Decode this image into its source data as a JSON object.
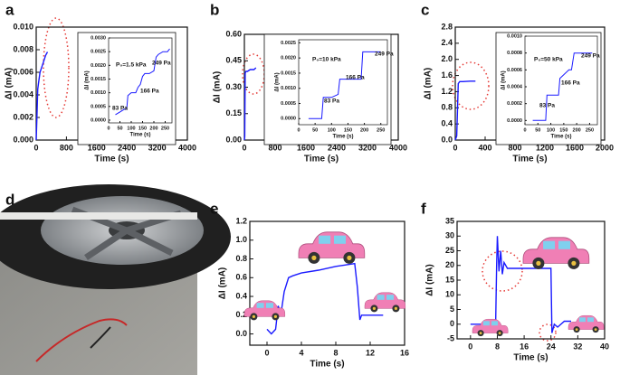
{
  "photo": {
    "label": "d"
  },
  "chart_data": [
    {
      "label": "a",
      "type": "line",
      "xlabel": "Time (s)",
      "ylabel": "ΔI (mA)",
      "xlim": [
        0,
        4000
      ],
      "xticks": [
        0,
        800,
        1600,
        2400,
        3200,
        4000
      ],
      "ylim": [
        0,
        0.01
      ],
      "yticks": [
        {
          "value": 0,
          "label": "0.000"
        },
        {
          "value": 0.002,
          "label": "0.002"
        },
        {
          "value": 0.004,
          "label": "0.004"
        },
        {
          "value": 0.006,
          "label": "0.006"
        },
        {
          "value": 0.008,
          "label": "0.008"
        },
        {
          "value": 0.01,
          "label": "0.010"
        }
      ],
      "series": [
        {
          "color": "#1a1aff",
          "x": [
            0,
            20,
            40,
            60,
            100,
            150,
            200,
            250,
            300
          ],
          "values": [
            0,
            0.002,
            0.0045,
            0.005,
            0.006,
            0.0065,
            0.007,
            0.0075,
            0.0078
          ]
        }
      ],
      "inset": {
        "type": "line",
        "subtitle": "P₀=1.5 kPa",
        "xlabel": "Time (s)",
        "ylabel": "ΔI (mA)",
        "xlim": [
          0,
          280
        ],
        "xticks": [
          0,
          50,
          100,
          150,
          200,
          250
        ],
        "ylim": [
          -0.0001,
          0.003
        ],
        "yticks": [
          {
            "value": 0,
            "label": "0.0000"
          },
          {
            "value": 0.0005,
            "label": "0.0005"
          },
          {
            "value": 0.001,
            "label": "0.0010"
          },
          {
            "value": 0.0015,
            "label": "0.0015"
          },
          {
            "value": 0.002,
            "label": "0.0020"
          },
          {
            "value": 0.0025,
            "label": "0.0025"
          },
          {
            "value": 0.003,
            "label": "0.0030"
          }
        ],
        "annotations": [
          "83 Pa",
          "166 Pa",
          "249 Pa"
        ],
        "series": [
          {
            "color": "#1a1aff",
            "x": [
              30,
              50,
              70,
              80,
              85,
              100,
              120,
              130,
              140,
              150,
              160,
              180,
              200,
              210,
              220,
              240,
              260,
              270
            ],
            "values": [
              0.0002,
              0.0003,
              0.0004,
              0.0004,
              0.0009,
              0.001,
              0.001,
              0.0012,
              0.0013,
              0.0016,
              0.0017,
              0.0017,
              0.0018,
              0.0023,
              0.0024,
              0.0025,
              0.0025,
              0.0026
            ]
          }
        ]
      }
    },
    {
      "label": "b",
      "type": "line",
      "xlabel": "Time (s)",
      "ylabel": "ΔI (mA)",
      "xlim": [
        0,
        4000
      ],
      "xticks": [
        0,
        800,
        1600,
        2400,
        3200,
        4000
      ],
      "ylim": [
        0,
        0.6
      ],
      "yticks": [
        {
          "value": 0,
          "label": "0.00"
        },
        {
          "value": 0.15,
          "label": "0.15"
        },
        {
          "value": 0.3,
          "label": "0.30"
        },
        {
          "value": 0.45,
          "label": "0.45"
        },
        {
          "value": 0.6,
          "label": "0.60"
        }
      ],
      "series": [
        {
          "color": "#1a1aff",
          "x": [
            0,
            10,
            20,
            40,
            80,
            150,
            250,
            300
          ],
          "values": [
            0,
            0.02,
            0.38,
            0.39,
            0.39,
            0.4,
            0.4,
            0.41
          ]
        }
      ],
      "inset": {
        "type": "line",
        "subtitle": "P₀=10 kPa",
        "xlabel": "Time (s)",
        "ylabel": "ΔI (mA)",
        "xlim": [
          0,
          270
        ],
        "xticks": [
          0,
          50,
          100,
          150,
          200,
          250
        ],
        "ylim": [
          -0.0002,
          0.0026
        ],
        "yticks": [
          {
            "value": 0,
            "label": "0.0000"
          },
          {
            "value": 0.0005,
            "label": "0.0005"
          },
          {
            "value": 0.001,
            "label": "0.0010"
          },
          {
            "value": 0.0015,
            "label": "0.0015"
          },
          {
            "value": 0.002,
            "label": "0.0020"
          },
          {
            "value": 0.0025,
            "label": "0.0025"
          }
        ],
        "annotations": [
          "83 Pa",
          "166 Pa",
          "249 Pa"
        ],
        "series": [
          {
            "color": "#1a1aff",
            "x": [
              30,
              60,
              70,
              75,
              100,
              120,
              125,
              150,
              190,
              195,
              220,
              250
            ],
            "values": [
              0,
              0,
              0,
              0.0007,
              0.0007,
              0.0008,
              0.0013,
              0.0013,
              0.0013,
              0.0022,
              0.0022,
              0.0022
            ]
          }
        ]
      }
    },
    {
      "label": "c",
      "type": "line",
      "xlabel": "Time (s)",
      "ylabel": "ΔI (mA)",
      "xlim": [
        0,
        2000
      ],
      "xticks": [
        0,
        400,
        800,
        1200,
        1600,
        2000
      ],
      "ylim": [
        0,
        2.8
      ],
      "yticks": [
        {
          "value": 0,
          "label": "0.0"
        },
        {
          "value": 0.4,
          "label": "0.4"
        },
        {
          "value": 0.8,
          "label": "0.8"
        },
        {
          "value": 1.2,
          "label": "1.2"
        },
        {
          "value": 1.6,
          "label": "1.6"
        },
        {
          "value": 2,
          "label": "2.0"
        },
        {
          "value": 2.4,
          "label": "2.4"
        },
        {
          "value": 2.8,
          "label": "2.8"
        }
      ],
      "series": [
        {
          "color": "#1a1aff",
          "x": [
            0,
            20,
            40,
            60,
            100,
            200,
            270
          ],
          "values": [
            0,
            0.1,
            1.4,
            1.45,
            1.45,
            1.46,
            1.46
          ]
        }
      ],
      "inset": {
        "type": "line",
        "subtitle": "P₀=50 kPa",
        "xlabel": "Time (s)",
        "ylabel": "ΔI (mA)",
        "xlim": [
          0,
          280
        ],
        "xticks": [
          0,
          50,
          100,
          150,
          200,
          250
        ],
        "ylim": [
          -5e-05,
          0.001
        ],
        "yticks": [
          {
            "value": 0,
            "label": "0.0000"
          },
          {
            "value": 0.0002,
            "label": "0.0002"
          },
          {
            "value": 0.0004,
            "label": "0.0004"
          },
          {
            "value": 0.0006,
            "label": "0.0006"
          },
          {
            "value": 0.0008,
            "label": "0.0008"
          },
          {
            "value": 0.001,
            "label": "0.0010"
          }
        ],
        "annotations": [
          "83 Pa",
          "166 Pa",
          "249 Pa"
        ],
        "series": [
          {
            "color": "#1a1aff",
            "x": [
              30,
              70,
              80,
              85,
              120,
              130,
              135,
              170,
              180,
              190,
              200,
              210,
              260
            ],
            "values": [
              0,
              0,
              0,
              0.0003,
              0.0003,
              0.0003,
              0.0005,
              0.0006,
              0.0006,
              0.0008,
              0.0008,
              0.0008,
              0.0008
            ]
          }
        ]
      }
    },
    {
      "label": "e",
      "type": "line",
      "xlabel": "Time (s)",
      "ylabel": "ΔI (mA)",
      "xlim": [
        -2,
        16
      ],
      "xticks": [
        0,
        4,
        8,
        12,
        16
      ],
      "ylim": [
        -0.12,
        1.2
      ],
      "yticks": [
        {
          "value": 0,
          "label": "0.0"
        },
        {
          "value": 0.2,
          "label": "0.2"
        },
        {
          "value": 0.4,
          "label": "0.4"
        },
        {
          "value": 0.6,
          "label": "0.6"
        },
        {
          "value": 0.8,
          "label": "0.8"
        },
        {
          "value": 1,
          "label": "1.0"
        },
        {
          "value": 1.2,
          "label": "1.2"
        }
      ],
      "series": [
        {
          "color": "#1a1aff",
          "x": [
            0,
            0.5,
            1,
            1.3,
            1.6,
            2,
            2.5,
            3,
            4,
            6,
            8,
            10.2,
            10.5,
            10.8,
            11,
            12,
            13.5
          ],
          "values": [
            0.05,
            0,
            0.05,
            0.3,
            0.2,
            0.45,
            0.6,
            0.62,
            0.65,
            0.68,
            0.72,
            0.75,
            0.5,
            0.15,
            0.2,
            0.2,
            0.2
          ]
        }
      ]
    },
    {
      "label": "f",
      "type": "line",
      "xlabel": "Time (s)",
      "ylabel": "ΔI (mA)",
      "xlim": [
        -4,
        40
      ],
      "xticks": [
        0,
        8,
        16,
        24,
        32,
        40
      ],
      "ylim": [
        -5,
        35
      ],
      "yticks": [
        -5,
        0,
        5,
        10,
        15,
        20,
        25,
        30,
        35
      ],
      "series": [
        {
          "color": "#1a1aff",
          "x": [
            0,
            7.5,
            7.8,
            8,
            8.5,
            9,
            9.5,
            10,
            11,
            12,
            16,
            20,
            24,
            24.3,
            25,
            26,
            28,
            30
          ],
          "values": [
            0,
            0,
            20,
            30,
            18,
            25,
            17,
            21,
            19,
            19,
            19,
            19,
            19,
            -3,
            0,
            -1,
            1,
            1
          ]
        }
      ]
    }
  ]
}
